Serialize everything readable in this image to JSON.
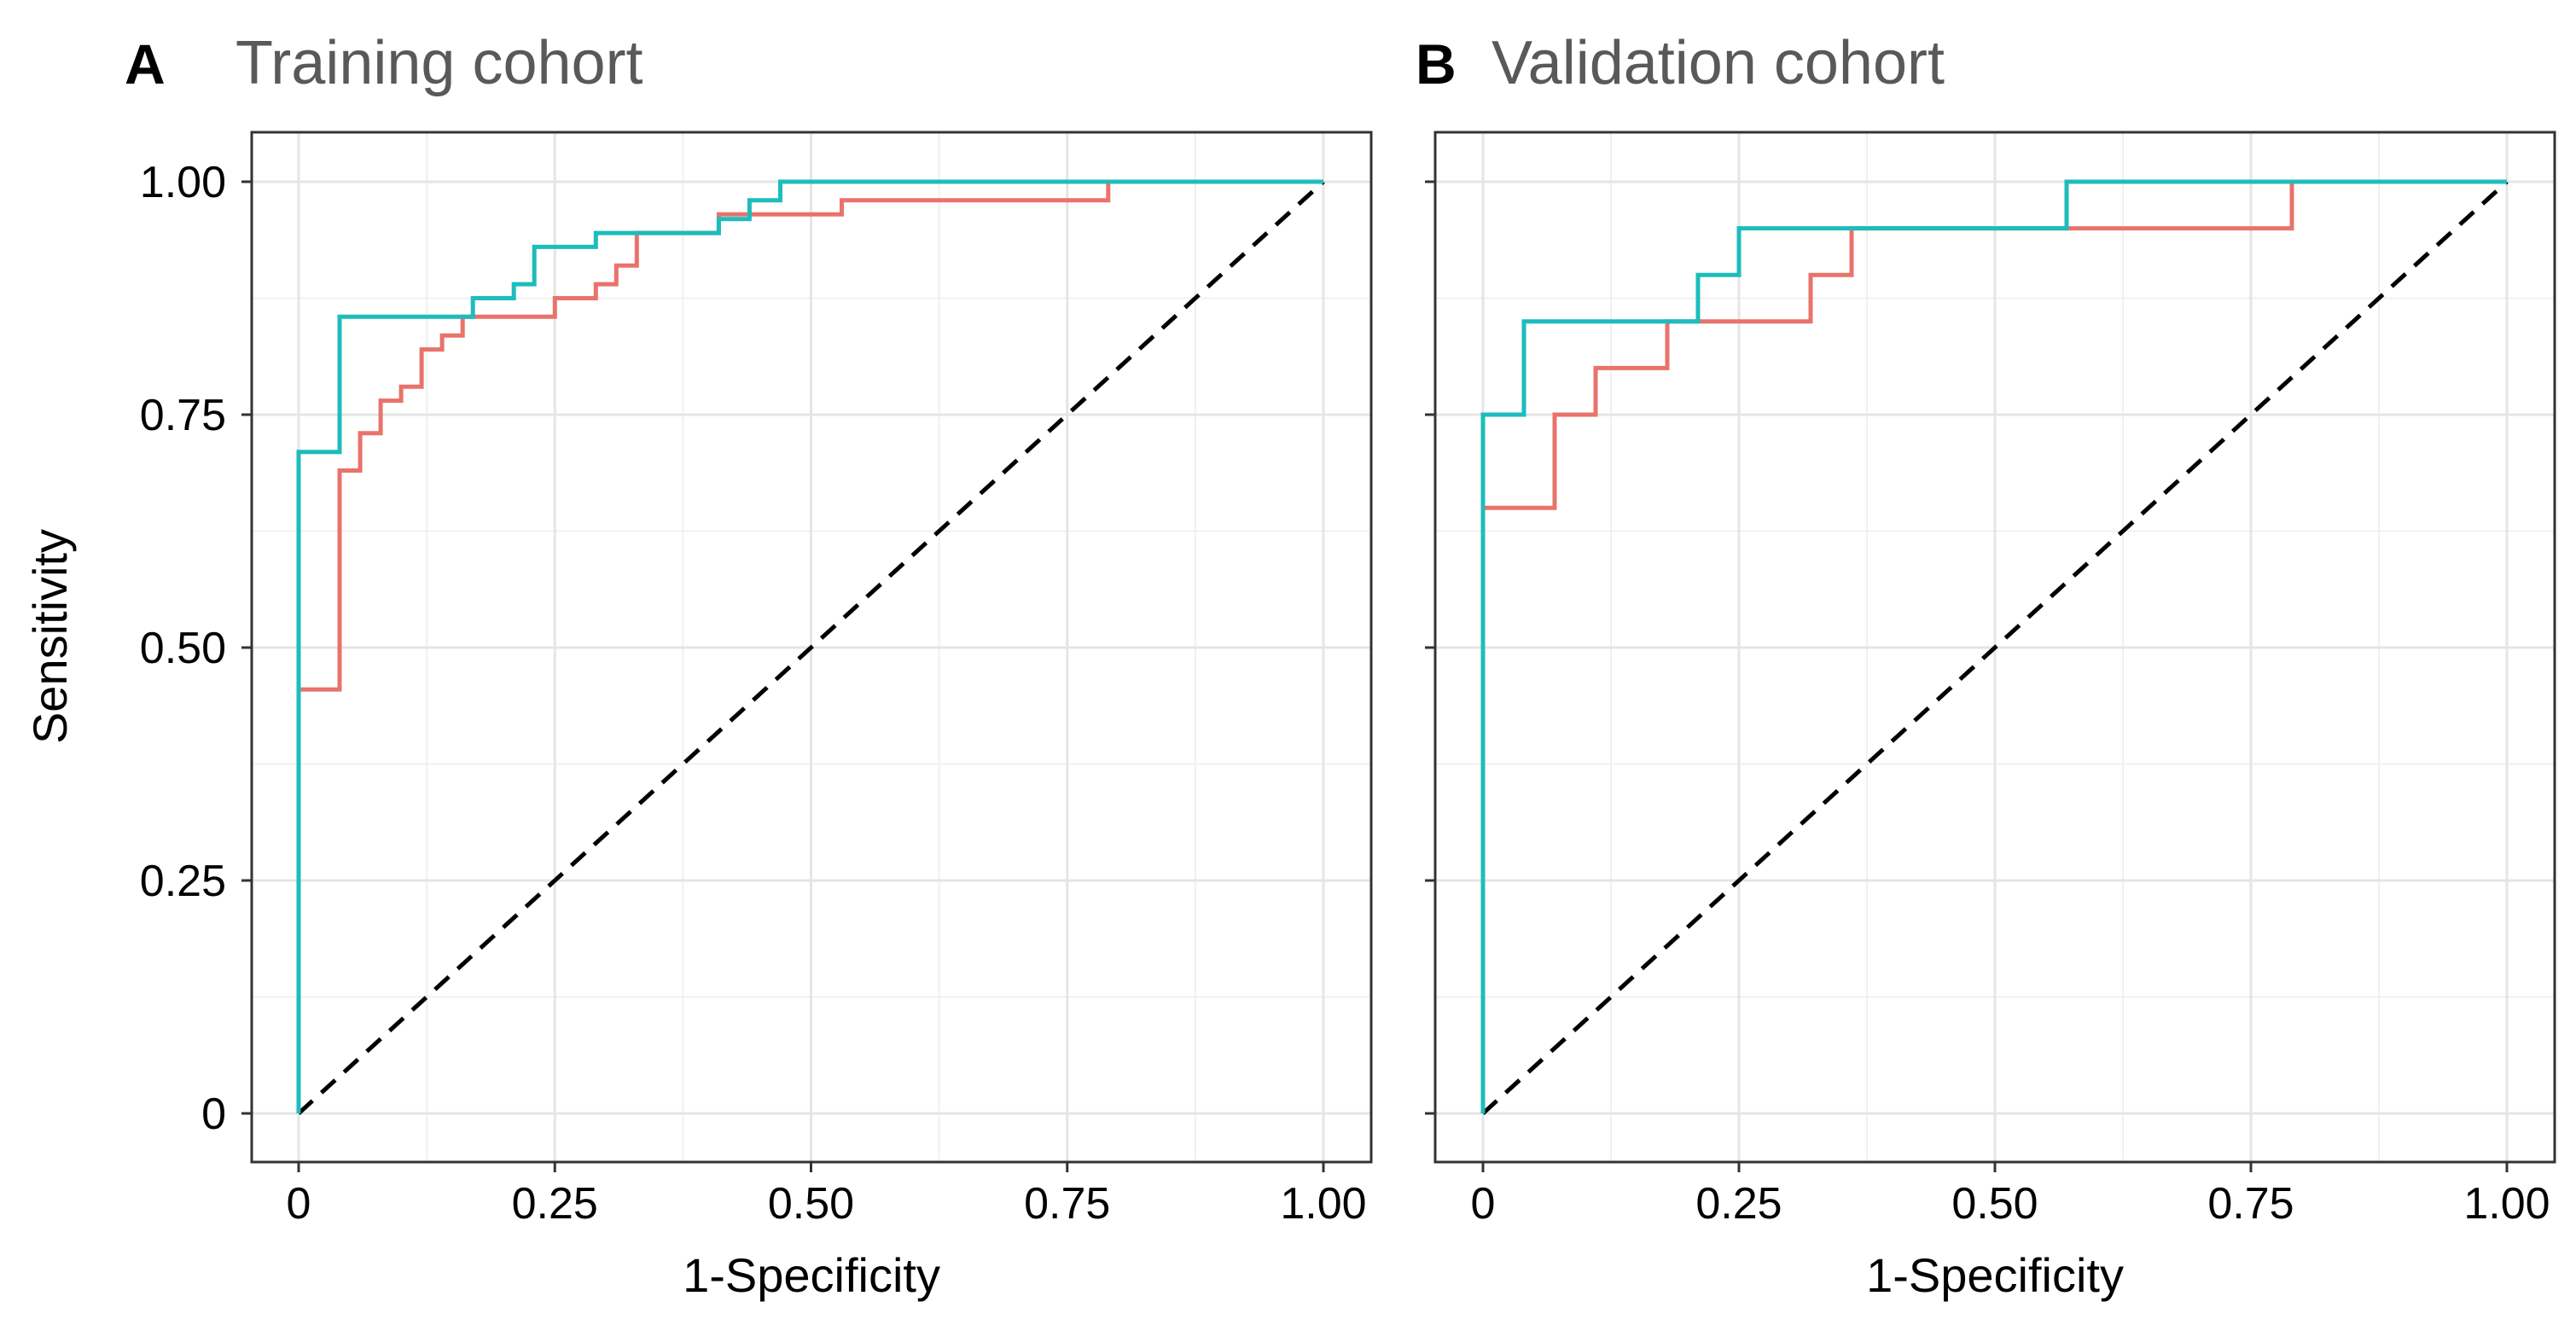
{
  "figure": {
    "y_axis_title": "Sensitivity",
    "colors": {
      "series_red": "#e8736b",
      "series_teal": "#1ebcbc",
      "reference": "#000000"
    }
  },
  "chart_data": [
    {
      "type": "line",
      "panel_letter": "A",
      "title": "Training cohort",
      "xlabel": "1-Specificity",
      "ylabel": "Sensitivity",
      "xlim": [
        0,
        1
      ],
      "ylim": [
        0,
        1
      ],
      "xticks": [
        0,
        0.25,
        0.5,
        0.75,
        1.0
      ],
      "xtick_labels": [
        "0",
        "0.25",
        "0.50",
        "0.75",
        "1.00"
      ],
      "yticks": [
        0,
        0.25,
        0.5,
        0.75,
        1.0
      ],
      "ytick_labels": [
        "0",
        "0.25",
        "0.50",
        "0.75",
        "1.00"
      ],
      "grid": true,
      "reference_line": {
        "x": [
          0,
          1
        ],
        "y": [
          0,
          1
        ],
        "style": "dashed"
      },
      "series": [
        {
          "name": "red",
          "color": "#e8736b",
          "x": [
            0,
            0,
            0.04,
            0.04,
            0.06,
            0.06,
            0.08,
            0.08,
            0.1,
            0.1,
            0.12,
            0.12,
            0.14,
            0.14,
            0.16,
            0.16,
            0.18,
            0.18,
            0.25,
            0.25,
            0.29,
            0.29,
            0.31,
            0.31,
            0.33,
            0.33,
            0.35,
            0.35,
            0.41,
            0.41,
            0.43,
            0.43,
            0.53,
            0.53,
            0.79,
            0.79,
            1.0
          ],
          "y": [
            0,
            0.455,
            0.455,
            0.69,
            0.69,
            0.73,
            0.73,
            0.765,
            0.765,
            0.78,
            0.78,
            0.82,
            0.82,
            0.835,
            0.835,
            0.855,
            0.855,
            0.855,
            0.855,
            0.875,
            0.875,
            0.89,
            0.89,
            0.91,
            0.91,
            0.945,
            0.945,
            0.945,
            0.945,
            0.965,
            0.965,
            0.965,
            0.965,
            0.98,
            0.98,
            1.0,
            1.0
          ]
        },
        {
          "name": "teal",
          "color": "#1ebcbc",
          "x": [
            0,
            0,
            0.04,
            0.04,
            0.17,
            0.17,
            0.21,
            0.21,
            0.23,
            0.23,
            0.29,
            0.29,
            0.41,
            0.41,
            0.44,
            0.44,
            0.45,
            0.45,
            0.47,
            0.47,
            1.0
          ],
          "y": [
            0,
            0.71,
            0.71,
            0.855,
            0.855,
            0.875,
            0.875,
            0.89,
            0.89,
            0.93,
            0.93,
            0.945,
            0.945,
            0.96,
            0.96,
            0.98,
            0.98,
            0.98,
            0.98,
            1.0,
            1.0
          ]
        }
      ]
    },
    {
      "type": "line",
      "panel_letter": "B",
      "title": "Validation cohort",
      "xlabel": "1-Specificity",
      "ylabel": "",
      "xlim": [
        0,
        1
      ],
      "ylim": [
        0,
        1
      ],
      "xticks": [
        0,
        0.25,
        0.5,
        0.75,
        1.0
      ],
      "xtick_labels": [
        "0",
        "0.25",
        "0.50",
        "0.75",
        "1.00"
      ],
      "yticks": [
        0,
        0.25,
        0.5,
        0.75,
        1.0
      ],
      "ytick_labels": [],
      "grid": true,
      "reference_line": {
        "x": [
          0,
          1
        ],
        "y": [
          0,
          1
        ],
        "style": "dashed"
      },
      "series": [
        {
          "name": "red",
          "color": "#e8736b",
          "x": [
            0,
            0,
            0.07,
            0.07,
            0.11,
            0.11,
            0.18,
            0.18,
            0.32,
            0.32,
            0.36,
            0.36,
            0.79,
            0.79,
            1.0
          ],
          "y": [
            0,
            0.65,
            0.65,
            0.75,
            0.75,
            0.8,
            0.8,
            0.85,
            0.85,
            0.9,
            0.9,
            0.95,
            0.95,
            1.0,
            1.0
          ]
        },
        {
          "name": "teal",
          "color": "#1ebcbc",
          "x": [
            0,
            0,
            0.04,
            0.04,
            0.21,
            0.21,
            0.25,
            0.25,
            0.57,
            0.57,
            1.0
          ],
          "y": [
            0,
            0.75,
            0.75,
            0.85,
            0.85,
            0.9,
            0.9,
            0.95,
            0.95,
            1.0,
            1.0
          ]
        }
      ]
    }
  ]
}
